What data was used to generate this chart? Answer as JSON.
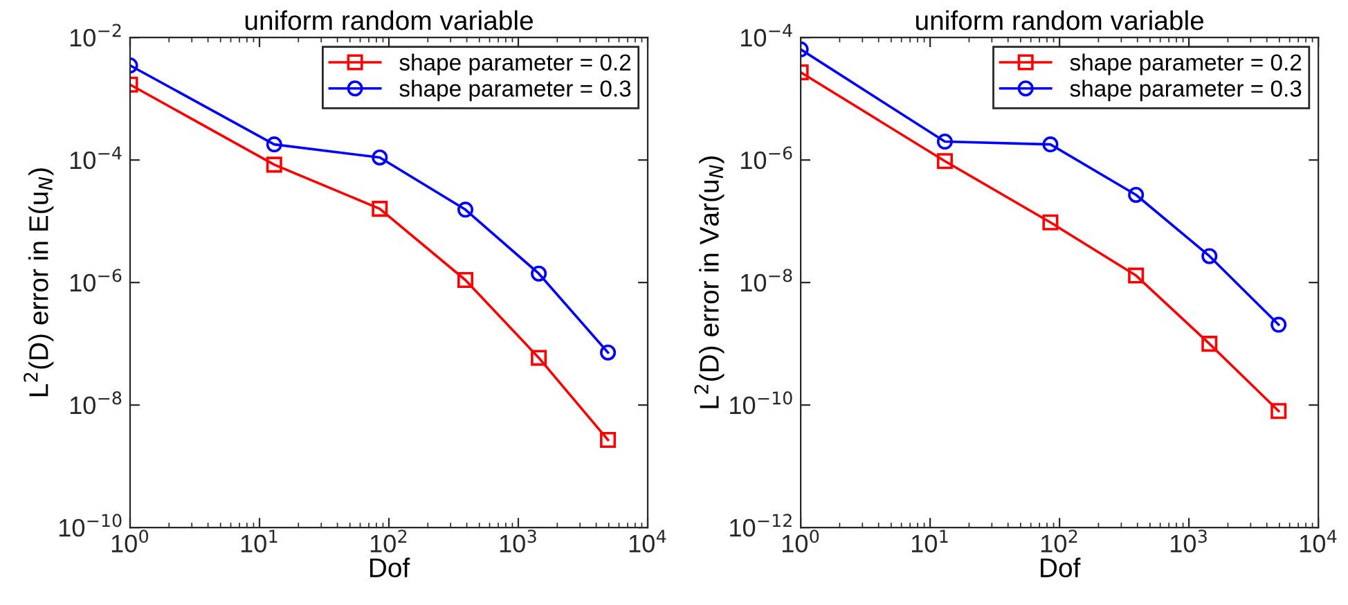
{
  "chart_data": [
    {
      "type": "line",
      "title": "uniform random variable",
      "xlabel": "Dof",
      "ylabel": "L$^{2}$(D) error in E(u$_{N}$)",
      "log": "xy",
      "grid": false,
      "legend": "top right",
      "x": [
        1,
        13,
        85,
        390,
        1440,
        4930
      ],
      "xlim": [
        1,
        10000
      ],
      "xticks": [
        {
          "value": 1,
          "label": "10$^{0}$"
        },
        {
          "value": 10,
          "label": "10$^{1}$"
        },
        {
          "value": 100,
          "label": "10$^{2}$"
        },
        {
          "value": 1000,
          "label": "10$^{3}$"
        },
        {
          "value": 10000,
          "label": "10$^{4}$"
        }
      ],
      "ylim": [
        1e-10,
        0.01
      ],
      "yticks": [
        {
          "value": 1e-10,
          "label": "10$^{−10}$"
        },
        {
          "value": 1e-08,
          "label": "10$^{−8}$"
        },
        {
          "value": 1e-06,
          "label": "10$^{−6}$"
        },
        {
          "value": 0.0001,
          "label": "10$^{−4}$"
        },
        {
          "value": 0.01,
          "label": "10$^{−2}$"
        }
      ],
      "series": [
        {
          "name": "shape parameter = 0.2",
          "color": "#ff0000",
          "marker": "square",
          "values": [
            0.0017,
            8.4e-05,
            1.6e-05,
            1.1e-06,
            5.9e-08,
            2.7e-09
          ]
        },
        {
          "name": "shape parameter = 0.3",
          "color": "#0000ff",
          "marker": "circle",
          "values": [
            0.0035,
            0.00018,
            0.00011,
            1.55e-05,
            1.4e-06,
            7.2e-08
          ]
        }
      ]
    },
    {
      "type": "line",
      "title": "uniform random variable",
      "xlabel": "Dof",
      "ylabel": "L$^{2}$(D) error in Var(u$_{N}$)",
      "log": "xy",
      "grid": false,
      "legend": "top right",
      "x": [
        1,
        13,
        85,
        390,
        1440,
        4930
      ],
      "xlim": [
        1,
        10000
      ],
      "xticks": [
        {
          "value": 1,
          "label": "10$^{0}$"
        },
        {
          "value": 10,
          "label": "10$^{1}$"
        },
        {
          "value": 100,
          "label": "10$^{2}$"
        },
        {
          "value": 1000,
          "label": "10$^{3}$"
        },
        {
          "value": 10000,
          "label": "10$^{4}$"
        }
      ],
      "ylim": [
        1e-12,
        0.0001
      ],
      "yticks": [
        {
          "value": 1e-12,
          "label": "10$^{−12}$"
        },
        {
          "value": 1e-10,
          "label": "10$^{−10}$"
        },
        {
          "value": 1e-08,
          "label": "10$^{−8}$"
        },
        {
          "value": 1e-06,
          "label": "10$^{−6}$"
        },
        {
          "value": 0.0001,
          "label": "10$^{−4}$"
        }
      ],
      "series": [
        {
          "name": "shape parameter = 0.2",
          "color": "#ff0000",
          "marker": "square",
          "values": [
            2.7e-05,
            9.6e-07,
            9.6e-08,
            1.3e-08,
            1e-09,
            8e-11
          ]
        },
        {
          "name": "shape parameter = 0.3",
          "color": "#0000ff",
          "marker": "circle",
          "values": [
            6.4e-05,
            2e-06,
            1.8e-06,
            2.7e-07,
            2.7e-08,
            2.05e-09
          ]
        }
      ]
    }
  ]
}
